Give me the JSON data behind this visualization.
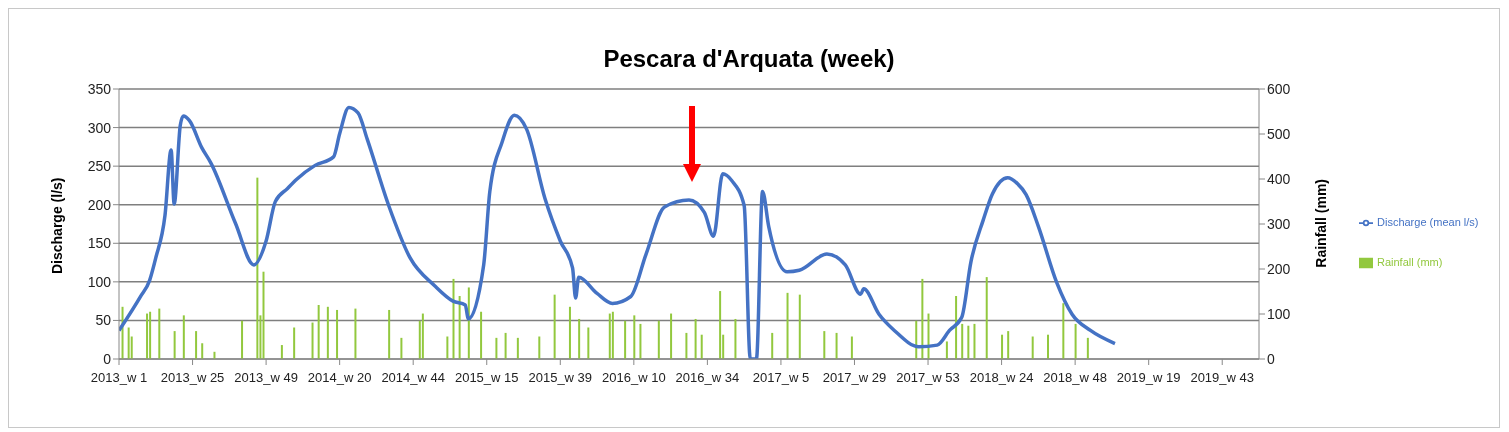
{
  "chart_data": {
    "type": "line",
    "title": "Pescara d'Arquata (week)",
    "ylabel": "Discharge (l/s)",
    "y2label": "Rainfall (mm)",
    "categories": [
      "2013_w 1",
      null,
      null,
      null,
      null,
      null,
      null,
      null,
      null,
      null,
      null,
      null,
      null,
      null,
      null,
      null,
      null,
      null,
      null,
      null,
      null,
      null,
      null,
      null,
      "2013_w 25",
      null,
      null,
      null,
      null,
      null,
      null,
      null,
      null,
      null,
      null,
      null,
      null,
      null,
      null,
      null,
      null,
      null,
      null,
      null,
      null,
      null,
      null,
      null,
      "2013_w 49",
      null,
      null,
      null,
      null,
      null,
      null,
      null,
      null,
      null,
      null,
      null,
      null,
      null,
      null,
      null,
      null,
      null,
      null,
      null,
      null,
      null,
      null,
      null,
      "2014_w 20",
      null,
      null,
      null,
      null,
      null,
      null,
      null,
      null,
      null,
      null,
      null,
      null,
      null,
      null,
      null,
      null,
      null,
      null,
      null,
      null,
      null,
      null,
      null,
      "2014_w 44",
      null,
      null,
      null,
      null,
      null,
      null,
      null,
      null,
      null,
      null,
      null,
      null,
      null,
      null,
      null,
      null,
      null,
      null,
      null,
      null,
      null,
      null,
      null,
      "2015_w 15",
      null,
      null,
      null,
      null,
      null,
      null,
      null,
      null,
      null,
      null,
      null,
      null,
      null,
      null,
      null,
      null,
      null,
      null,
      null,
      null,
      null,
      null,
      null,
      "2015_w 39",
      null,
      null,
      null,
      null,
      null,
      null,
      null,
      null,
      null,
      null,
      null,
      null,
      null,
      null,
      null,
      null,
      null,
      null,
      null,
      null,
      null,
      null,
      null,
      "2016_w 10",
      null,
      null,
      null,
      null,
      null,
      null,
      null,
      null,
      null,
      null,
      null,
      null,
      null,
      null,
      null,
      null,
      null,
      null,
      null,
      null,
      null,
      null,
      null,
      "2016_w 34",
      null,
      null,
      null,
      null,
      null,
      null,
      null,
      null,
      null,
      null,
      null,
      null,
      null,
      null,
      null,
      null,
      null,
      null,
      null,
      null,
      null,
      null,
      null,
      "2017_w 5",
      null,
      null,
      null,
      null,
      null,
      null,
      null,
      null,
      null,
      null,
      null,
      null,
      null,
      null,
      null,
      null,
      null,
      null,
      null,
      null,
      null,
      null,
      null,
      "2017_w 29",
      null,
      null,
      null,
      null,
      null,
      null,
      null,
      null,
      null,
      null,
      null,
      null,
      null,
      null,
      null,
      null,
      null,
      null,
      null,
      null,
      null,
      null,
      null,
      "2017_w 53",
      null,
      null,
      null,
      null,
      null,
      null,
      null,
      null,
      null,
      null,
      null,
      null,
      null,
      null,
      null,
      null,
      null,
      null,
      null,
      null,
      null,
      null,
      null,
      "2018_w 24",
      null,
      null,
      null,
      null,
      null,
      null,
      null,
      null,
      null,
      null,
      null,
      null,
      null,
      null,
      null,
      null,
      null,
      null,
      null,
      null,
      null,
      null,
      null,
      "2018_w 48",
      null,
      null,
      null,
      null,
      null,
      null,
      null,
      null,
      null,
      null,
      null,
      null,
      null,
      null,
      null,
      null,
      null,
      null,
      null,
      null,
      null,
      null,
      null,
      "2019_w 19",
      null,
      null,
      null,
      null,
      null,
      null,
      null,
      null,
      null,
      null,
      null,
      null,
      null,
      null,
      null,
      null,
      null,
      null,
      null,
      null,
      null,
      null,
      null,
      "2019_w 43",
      null,
      null,
      null,
      null,
      null,
      null,
      null,
      null,
      null,
      null
    ],
    "ylim": [
      0,
      350
    ],
    "yticks": [
      0,
      50,
      100,
      150,
      200,
      250,
      300,
      350
    ],
    "y2lim": [
      0,
      600
    ],
    "y2ticks": [
      0,
      100,
      200,
      300,
      400,
      500,
      600
    ],
    "grid": "y",
    "legend": "right",
    "marker": "none",
    "line_style": "solid",
    "series": [
      {
        "name": "Rainfall (mm)",
        "type": "bar",
        "axis": "y2",
        "color": "#92c83e",
        "values": [
          0,
          116,
          0,
          70,
          50,
          0,
          0,
          0,
          0,
          101,
          105,
          0,
          0,
          112,
          0,
          0,
          0,
          0,
          62,
          0,
          0,
          97,
          0,
          0,
          0,
          62,
          0,
          35,
          0,
          0,
          0,
          16,
          0,
          0,
          0,
          0,
          0,
          0,
          0,
          0,
          85,
          0,
          0,
          0,
          0,
          403,
          97,
          194,
          0,
          0,
          0,
          0,
          0,
          31,
          0,
          0,
          0,
          70,
          0,
          0,
          0,
          0,
          0,
          81,
          0,
          120,
          0,
          0,
          116,
          0,
          0,
          109,
          0,
          0,
          0,
          0,
          0,
          112,
          0,
          0,
          0,
          0,
          0,
          0,
          0,
          0,
          0,
          0,
          109,
          0,
          0,
          0,
          47,
          0,
          0,
          0,
          0,
          0,
          85,
          101,
          0,
          0,
          0,
          0,
          0,
          0,
          0,
          50,
          0,
          178,
          0,
          140,
          0,
          0,
          159,
          0,
          0,
          0,
          105,
          0,
          0,
          0,
          0,
          47,
          0,
          0,
          58,
          0,
          0,
          0,
          47,
          0,
          0,
          0,
          0,
          0,
          0,
          50,
          0,
          0,
          0,
          0,
          143,
          0,
          0,
          0,
          0,
          116,
          0,
          0,
          89,
          0,
          0,
          70,
          0,
          0,
          0,
          0,
          0,
          0,
          101,
          105,
          0,
          0,
          0,
          85,
          0,
          0,
          97,
          0,
          78,
          0,
          0,
          0,
          0,
          0,
          85,
          0,
          0,
          0,
          101,
          0,
          0,
          0,
          0,
          58,
          0,
          0,
          89,
          0,
          54,
          0,
          0,
          0,
          0,
          0,
          151,
          54,
          0,
          0,
          0,
          89,
          0,
          0,
          0,
          0,
          0,
          0,
          0,
          0,
          0,
          0,
          0,
          58,
          0,
          0,
          0,
          0,
          147,
          0,
          0,
          0,
          143,
          0,
          0,
          0,
          0,
          0,
          0,
          0,
          62,
          0,
          0,
          0,
          58,
          0,
          0,
          0,
          0,
          50,
          0,
          0,
          0,
          0,
          0,
          0,
          0,
          0,
          0,
          0,
          0,
          0,
          0,
          0,
          0,
          0,
          0,
          0,
          0,
          0,
          85,
          0,
          178,
          0,
          101,
          0,
          0,
          0,
          0,
          0,
          39,
          0,
          0,
          140,
          0,
          78,
          0,
          74,
          0,
          78,
          0,
          0,
          0,
          182,
          0,
          0,
          0,
          0,
          54,
          0,
          62,
          0,
          0,
          0,
          0,
          0,
          0,
          0,
          50,
          0,
          0,
          0,
          0,
          54,
          0,
          0,
          0,
          0,
          124,
          0,
          0,
          0,
          78,
          0,
          0,
          0,
          47,
          0,
          0,
          0,
          null,
          null,
          null,
          null,
          null,
          null,
          null,
          null,
          null,
          null,
          null,
          null,
          null,
          null,
          null,
          null,
          null,
          null,
          null,
          null,
          null,
          null,
          null,
          null,
          null,
          null,
          null,
          null,
          null,
          null,
          null,
          null,
          null,
          null,
          null,
          null,
          null,
          null,
          null,
          null,
          null,
          null,
          null,
          null,
          null,
          null,
          null,
          null,
          null,
          null,
          null
        ]
      },
      {
        "name": "Discharge (mean l/s)",
        "color": "#4472c4",
        "values": [
          37,
          null,
          null,
          null,
          null,
          null,
          null,
          81,
          null,
          null,
          102,
          null,
          131,
          null,
          null,
          186,
          null,
          271,
          201,
          null,
          303,
          315,
          null,
          309,
          null,
          null,
          null,
          274,
          null,
          null,
          254,
          null,
          null,
          null,
          null,
          null,
          null,
          null,
          176,
          null,
          null,
          null,
          null,
          null,
          122,
          null,
          null,
          null,
          153,
          null,
          null,
          204,
          null,
          null,
          null,
          221,
          null,
          null,
          233,
          null,
          null,
          null,
          null,
          null,
          251,
          null,
          null,
          null,
          null,
          null,
          262,
          null,
          292,
          null,
          null,
          326,
          null,
          null,
          319,
          null,
          null,
          285,
          null,
          null,
          null,
          null,
          null,
          null,
          199,
          null,
          null,
          null,
          null,
          null,
          null,
          131,
          null,
          null,
          null,
          null,
          null,
          null,
          null,
          95,
          null,
          null,
          null,
          null,
          null,
          75,
          null,
          null,
          null,
          70,
          52,
          null,
          null,
          null,
          null,
          122,
          null,
          217,
          null,
          null,
          null,
          281,
          null,
          null,
          null,
          316,
          null,
          null,
          null,
          298,
          null,
          null,
          null,
          null,
          null,
          208,
          null,
          null,
          null,
          null,
          153,
          null,
          null,
          null,
          118,
          79,
          106,
          null,
          null,
          null,
          null,
          null,
          85,
          null,
          null,
          null,
          null,
          72,
          null,
          null,
          null,
          null,
          null,
          81,
          null,
          null,
          null,
          null,
          136,
          null,
          null,
          null,
          null,
          null,
          197,
          null,
          null,
          null,
          null,
          null,
          null,
          null,
          206,
          null,
          null,
          null,
          null,
          190,
          null,
          null,
          159,
          null,
          null,
          240,
          null,
          null,
          231,
          null,
          null,
          null,
          199,
          null,
          0,
          null,
          0,
          null,
          217,
          null,
          172,
          null,
          null,
          null,
          null,
          null,
          113,
          null,
          null,
          null,
          115,
          null,
          null,
          null,
          null,
          null,
          null,
          null,
          null,
          136,
          null,
          null,
          null,
          null,
          null,
          122,
          null,
          null,
          null,
          null,
          84,
          91,
          null,
          null,
          null,
          null,
          58,
          null,
          null,
          null,
          null,
          37,
          null,
          null,
          null,
          null,
          null,
          null,
          null,
          16,
          null,
          null,
          null,
          null,
          null,
          18,
          null,
          null,
          null,
          37,
          null,
          null,
          null,
          54,
          null,
          null,
          126,
          null,
          null,
          null,
          180,
          null,
          null,
          214,
          null,
          null,
          null,
          null,
          235,
          null,
          null,
          228,
          null,
          null,
          213,
          null,
          null,
          null,
          172,
          null,
          null,
          null,
          null,
          null,
          99,
          null,
          null,
          null,
          null,
          58,
          null,
          null,
          null,
          null,
          null,
          37,
          null,
          null,
          null,
          null,
          null,
          null,
          null,
          20,
          null,
          null,
          null,
          null,
          null,
          null,
          null,
          null,
          null,
          null,
          null,
          null,
          null,
          null,
          null,
          null,
          null,
          null,
          null,
          null,
          null,
          null,
          null,
          null,
          null,
          null,
          null,
          null,
          null,
          null,
          null,
          null,
          null,
          null,
          null,
          null,
          null,
          null,
          null,
          null,
          null,
          null,
          null,
          null,
          null
        ]
      }
    ]
  }
}
